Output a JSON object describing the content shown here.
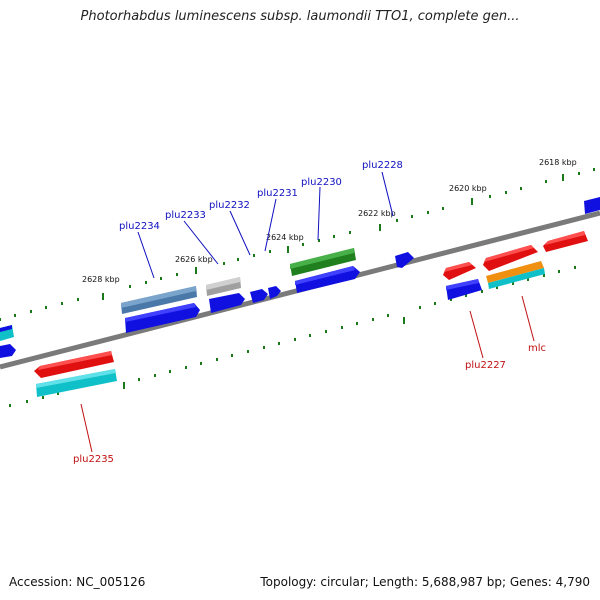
{
  "title": "Photorhabdus luminescens subsp. laumondii TTO1, complete gen...",
  "footer": {
    "accession": "Accession: NC_005126",
    "summary": "Topology: circular; Length: 5,688,987 bp; Genes: 4,790"
  },
  "ticks": [
    "2618 kbp",
    "2620 kbp",
    "2622 kbp",
    "2624 kbp",
    "2626 kbp",
    "2628 kbp"
  ],
  "genes": {
    "plu2228": "plu2228",
    "plu2230": "plu2230",
    "plu2231": "plu2231",
    "plu2232": "plu2232",
    "plu2233": "plu2233",
    "plu2234": "plu2234",
    "plu2235": "plu2235",
    "plu2227": "plu2227",
    "mlc": "mlc"
  },
  "colors": {
    "blue": "#1010e0",
    "red": "#e01010",
    "cyan": "#10c0c8",
    "green": "#208020",
    "steel": "#4a78a8",
    "gray": "#a0a0a0",
    "orange": "#f09010",
    "tick": "#1a7a1a",
    "backbone": "#777777"
  }
}
